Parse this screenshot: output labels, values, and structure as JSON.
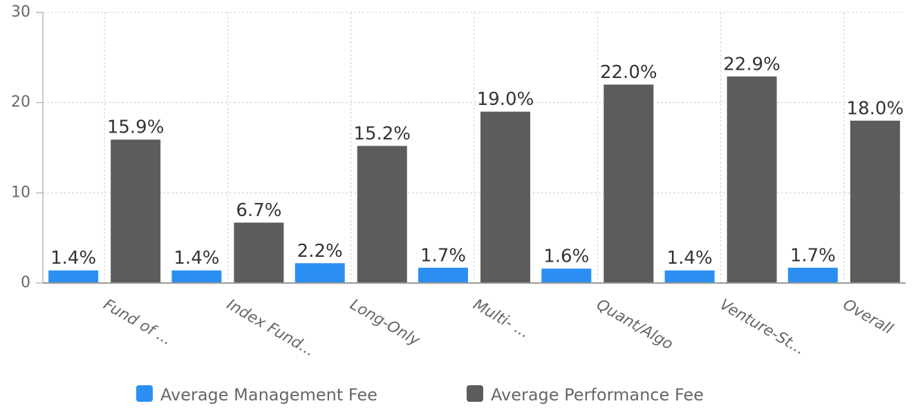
{
  "chart_data": {
    "type": "bar",
    "categories": [
      "Fund of ...",
      "Index Fund...",
      "Long-Only",
      "Multi- ...",
      "Quant/Algo",
      "Venture-St...",
      "Overall"
    ],
    "series": [
      {
        "name": "Average Management Fee",
        "color": "#2b8ff2",
        "values": [
          1.4,
          1.4,
          2.2,
          1.7,
          1.6,
          1.4,
          1.7
        ],
        "value_labels": [
          "1.4%",
          "1.4%",
          "2.2%",
          "1.7%",
          "1.6%",
          "1.4%",
          "1.7%"
        ]
      },
      {
        "name": "Average Performance Fee",
        "color": "#5b5c5e",
        "values": [
          15.9,
          6.7,
          15.2,
          19.0,
          22.0,
          22.9,
          18.0
        ],
        "value_labels": [
          "15.9%",
          "6.7%",
          "15.2%",
          "19.0%",
          "22.0%",
          "22.9%",
          "18.0%"
        ]
      }
    ],
    "ylim": [
      0,
      30
    ],
    "yticks": [
      0,
      10,
      20,
      30
    ],
    "grid": true,
    "legend": "bottom"
  }
}
